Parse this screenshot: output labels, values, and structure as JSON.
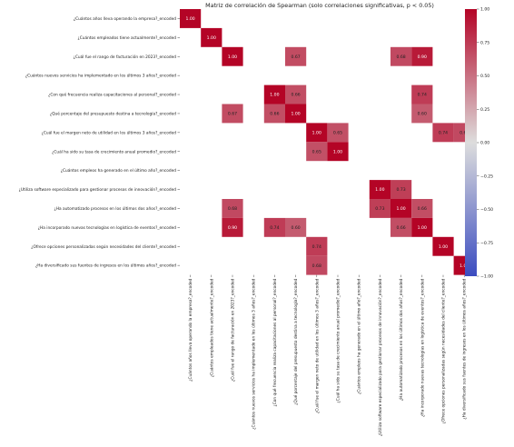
{
  "chart_data": {
    "type": "heatmap",
    "title": "Matriz de correlación de Spearman (solo correlaciones significativas, p < 0.05)",
    "labels": [
      "¿Cuántos años lleva operando la empresa?_encoded",
      "¿Cuántos empleados tiene actualmente?_encoded",
      "¿Cuál fue el rango de facturación en 2023?_encoded",
      "¿Cuántos nuevos servicios ha implementado en los últimos 3 años?_encoded",
      "¿Con qué frecuencia realiza capacitaciones al personal?_encoded",
      "¿Qué porcentaje del presupuesto destina a tecnología?_encoded",
      "¿Cuál fue el margen neto de utilidad en los últimos 3 años?_encoded",
      "¿Cuál ha sido su tasa de crecimiento anual promedio?_encoded",
      "¿Cuántos empleos ha generado en el último año?_encoded",
      "¿Utiliza software especializado para gestionar procesos de innovación?_encoded",
      "¿Ha automatizado procesos en los últimos dos años?_encoded",
      "¿Ha incorporado nuevas tecnologías en logística de eventos?_encoded",
      "¿Ofrece opciones personalizadas según necesidades del cliente?_encoded",
      "¿Ha diversificado sus fuentes de ingresos en los últimos años?_encoded"
    ],
    "matrix": [
      [
        1.0,
        null,
        null,
        null,
        null,
        null,
        null,
        null,
        null,
        null,
        null,
        null,
        null,
        null
      ],
      [
        null,
        1.0,
        null,
        null,
        null,
        null,
        null,
        null,
        null,
        null,
        null,
        null,
        null,
        null
      ],
      [
        null,
        null,
        1.0,
        null,
        null,
        0.67,
        null,
        null,
        null,
        null,
        0.68,
        0.9,
        null,
        null
      ],
      [
        null,
        null,
        null,
        null,
        null,
        null,
        null,
        null,
        null,
        null,
        null,
        null,
        null,
        null
      ],
      [
        null,
        null,
        null,
        null,
        1.0,
        0.66,
        null,
        null,
        null,
        null,
        null,
        0.74,
        null,
        null
      ],
      [
        null,
        null,
        0.67,
        null,
        0.66,
        1.0,
        null,
        null,
        null,
        null,
        null,
        0.6,
        null,
        null
      ],
      [
        null,
        null,
        null,
        null,
        null,
        null,
        1.0,
        0.65,
        null,
        null,
        null,
        null,
        0.74,
        0.68
      ],
      [
        null,
        null,
        null,
        null,
        null,
        null,
        0.65,
        1.0,
        null,
        null,
        null,
        null,
        null,
        null
      ],
      [
        null,
        null,
        null,
        null,
        null,
        null,
        null,
        null,
        null,
        null,
        null,
        null,
        null,
        null
      ],
      [
        null,
        null,
        null,
        null,
        null,
        null,
        null,
        null,
        null,
        1.0,
        0.73,
        null,
        null,
        null
      ],
      [
        null,
        null,
        0.68,
        null,
        null,
        null,
        null,
        null,
        null,
        0.73,
        1.0,
        0.66,
        null,
        null
      ],
      [
        null,
        null,
        0.9,
        null,
        0.74,
        0.6,
        null,
        null,
        null,
        null,
        0.66,
        1.0,
        null,
        null
      ],
      [
        null,
        null,
        null,
        null,
        null,
        null,
        0.74,
        null,
        null,
        null,
        null,
        null,
        1.0,
        null
      ],
      [
        null,
        null,
        null,
        null,
        null,
        null,
        0.68,
        null,
        null,
        null,
        null,
        null,
        null,
        1.0
      ]
    ],
    "value_format": "2 decimals",
    "colormap": "coolwarm",
    "vmin": -1.0,
    "vmax": 1.0,
    "colorbar_ticks": [
      "1.00",
      "0.75",
      "0.50",
      "0.25",
      "0.00",
      "−0.25",
      "−0.50",
      "−0.75",
      "−1.00"
    ],
    "colors": {
      "low": "#3b4cc0",
      "mid": "#dddddd",
      "high": "#b40426"
    }
  }
}
